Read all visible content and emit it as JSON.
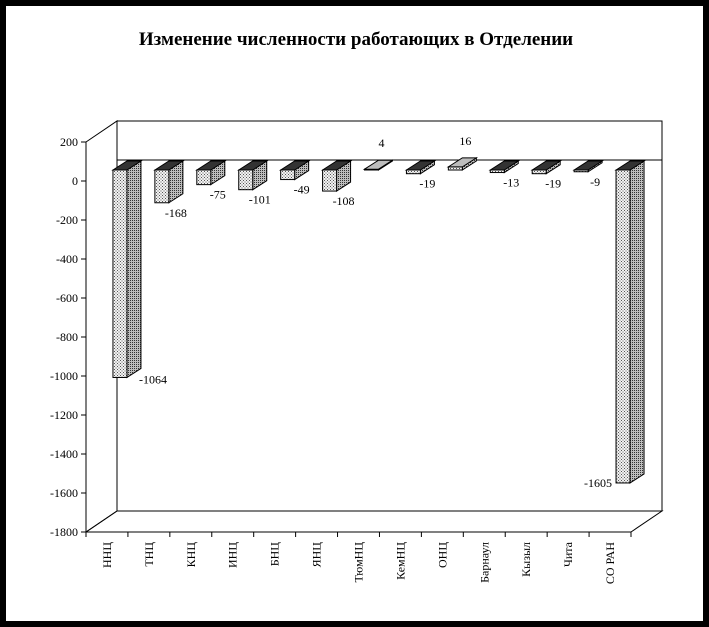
{
  "chart_data": {
    "type": "bar",
    "title": "Изменение численности работающих в Отделении",
    "xlabel": "",
    "ylabel": "",
    "ylim": [
      -1800,
      200
    ],
    "yticks": [
      200,
      0,
      -200,
      -400,
      -600,
      -800,
      -1000,
      -1200,
      -1400,
      -1600,
      -1800
    ],
    "grid": false,
    "legend": "none",
    "categories": [
      "ННЦ",
      "ТНЦ",
      "КНЦ",
      "ИНЦ",
      "БНЦ",
      "ЯНЦ",
      "ТюмНЦ",
      "КемНЦ",
      "ОНЦ",
      "Барнаул",
      "Кызыл",
      "Чита",
      "СО РАН"
    ],
    "values": [
      -1064,
      -168,
      -75,
      -101,
      -49,
      -108,
      4,
      -19,
      16,
      -13,
      -19,
      -9,
      -1605
    ],
    "value_labels": [
      "-1064",
      "-168",
      "-75",
      "-101",
      "-49",
      "-108",
      "4",
      "-19",
      "16",
      "-13",
      "-19",
      "-9",
      "-1605"
    ],
    "colors": {
      "bar_face": "#e4e4e4",
      "bar_side": "#888888",
      "bar_top": "#333333",
      "axis": "#000000"
    }
  }
}
